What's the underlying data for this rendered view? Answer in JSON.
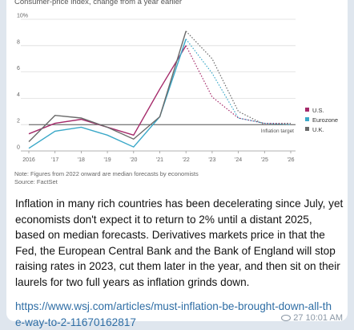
{
  "chart_card": {
    "subtitle": "Consumer-price index, change from a year earlier",
    "note": "Note: Figures from 2022 onward are median forecasts by economists",
    "source": "Source: FactSet"
  },
  "chart_data": {
    "type": "line",
    "x": [
      2016,
      2017,
      2018,
      2019,
      2020,
      2021,
      2022,
      2023,
      2024,
      2025,
      2026
    ],
    "x_tick_labels": [
      "2016",
      "'17",
      "'18",
      "'19",
      "'20",
      "'21",
      "'22",
      "'23",
      "'24",
      "'25",
      "'26"
    ],
    "y_tick_labels": [
      "10%",
      "8",
      "6",
      "4",
      "2",
      "0"
    ],
    "y_ticks": [
      10,
      8,
      6,
      4,
      2,
      0
    ],
    "ylim": [
      0,
      10
    ],
    "grid": true,
    "legend_placement": "right",
    "forecast_from": 2022,
    "target": {
      "value": 2,
      "label": "Inflation target"
    },
    "series": [
      {
        "name": "U.S.",
        "color": "#a52a6a",
        "values": [
          1.3,
          2.1,
          2.4,
          1.8,
          1.2,
          4.7,
          8.0,
          4.1,
          2.5,
          2.1,
          2.1
        ]
      },
      {
        "name": "Eurozone",
        "color": "#3aa8c8",
        "values": [
          0.2,
          1.5,
          1.8,
          1.2,
          0.3,
          2.6,
          8.5,
          5.9,
          2.5,
          2.1,
          2.0
        ]
      },
      {
        "name": "U.K.",
        "color": "#6a6a6a",
        "values": [
          0.7,
          2.7,
          2.5,
          1.8,
          0.9,
          2.6,
          9.1,
          7.0,
          3.0,
          2.0,
          2.1
        ]
      }
    ]
  },
  "message": {
    "text": "Inflation in many rich countries has been decelerating since July, yet economists don't expect it to return to 2% until a distant 2025, based on median forecasts. Derivatives markets price in that the Fed, the European Central Bank and the Bank of England will stop raising rates in 2023, cut them later in the year, and then sit on their laurels for two full years as inflation grinds down.",
    "link": "https://www.wsj.com/articles/must-inflation-be-brought-down-all-the-way-to-2-11670162817",
    "views": "27",
    "time": "10:01 AM"
  },
  "colors": {
    "link": "#2f6ea5",
    "grid": "#dddddd",
    "target_line": "#555555"
  }
}
